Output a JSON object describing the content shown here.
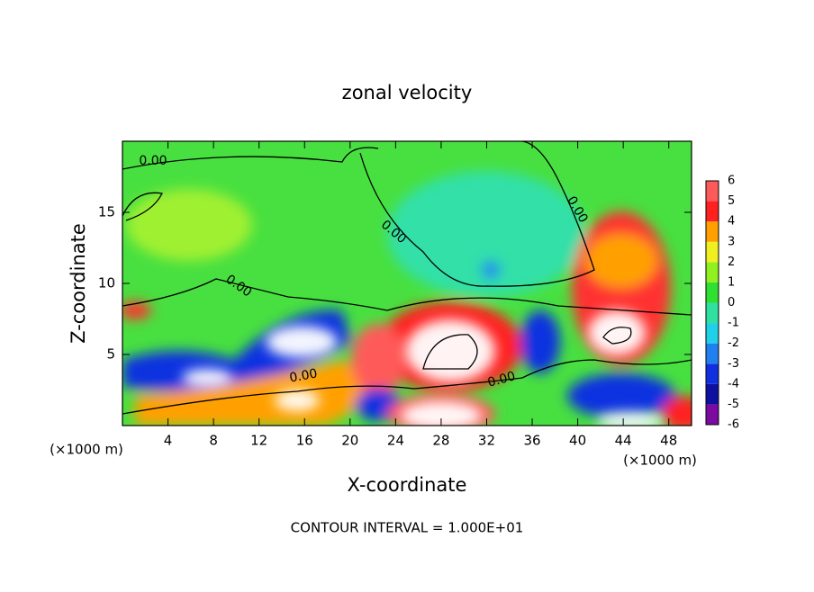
{
  "chart_data": {
    "type": "contour",
    "title": "zonal velocity",
    "x_label": "X-coordinate",
    "y_label": "Z-coordinate",
    "x_unit_left": "(×1000 m)",
    "x_unit_right": "(×1000 m)",
    "footer": "CONTOUR INTERVAL = 1.000E+01",
    "xlim": [
      0,
      50
    ],
    "xticks": [
      4,
      8,
      12,
      16,
      20,
      24,
      28,
      32,
      36,
      40,
      44,
      48
    ],
    "ylim": [
      0,
      20
    ],
    "yticks": [
      5,
      10,
      15
    ],
    "colorbar_levels": [
      -6,
      -5,
      -4,
      -3,
      -2,
      -1,
      0,
      1,
      2,
      3,
      4,
      5,
      6
    ],
    "colorbar_colors": [
      "#7a0aa0",
      "#1010a0",
      "#1030e0",
      "#2080f0",
      "#20d0e8",
      "#30e0a0",
      "#30e030",
      "#90f020",
      "#f0f020",
      "#ffa000",
      "#ff2020",
      "#ff5a5a",
      "#ffa0a0"
    ],
    "contour_labels": [
      "0.00",
      "0.00",
      "0.00",
      "0.00",
      "0.00",
      "0.00"
    ]
  }
}
